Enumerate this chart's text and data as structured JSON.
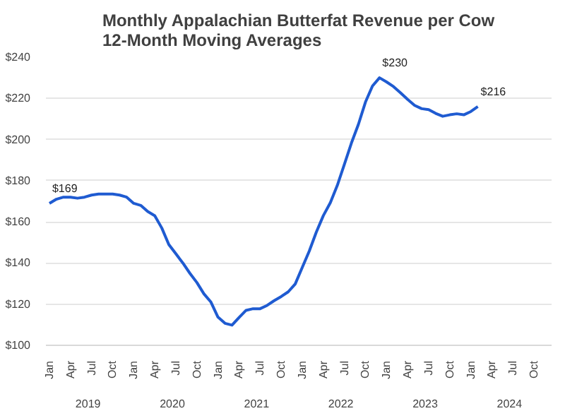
{
  "chart_data": {
    "type": "line",
    "title": "Monthly Appalachian Butterfat Revenue per Cow\n12-Month Moving Averages",
    "categories": [
      "Jan",
      null,
      null,
      "Apr",
      null,
      null,
      "Jul",
      null,
      null,
      "Oct",
      null,
      null,
      "Jan",
      null,
      null,
      "Apr",
      null,
      null,
      "Jul",
      null,
      null,
      "Oct",
      null,
      null,
      "Jan",
      null,
      null,
      "Apr",
      null,
      null,
      "Jul",
      null,
      null,
      "Oct",
      null,
      null,
      "Jan",
      null,
      null,
      "Apr",
      null,
      null,
      "Jul",
      null,
      null,
      "Oct",
      null,
      null,
      "Jan",
      null,
      null,
      "Apr",
      null,
      null,
      "Jul",
      null,
      null,
      "Oct",
      null,
      null,
      "Jan",
      null,
      null,
      "Apr",
      null,
      null,
      "Jul",
      null,
      null,
      "Oct",
      null,
      null
    ],
    "annotations": [
      "2019",
      "2020",
      "2021",
      "2022",
      "2023",
      "2024"
    ],
    "series": [
      {
        "color": "#1f5bd1",
        "values": [
          169,
          171,
          172,
          172,
          171.5,
          172,
          173,
          173.5,
          173.5,
          173.5,
          173,
          172,
          169,
          168,
          165,
          163,
          157,
          149,
          144.5,
          140,
          135,
          130.5,
          125,
          121,
          113.7,
          110.7,
          109.8,
          113.5,
          117,
          117.8,
          117.8,
          119.4,
          121.7,
          123.7,
          126,
          129.8,
          137.8,
          145.8,
          155,
          163,
          169.3,
          177.8,
          188,
          198.3,
          207.4,
          218.2,
          226,
          230,
          228,
          225.7,
          222.7,
          219.5,
          216.6,
          215,
          214.5,
          212.7,
          211.3,
          212,
          212.5,
          212,
          213.6,
          216,
          null,
          null,
          null,
          null,
          null,
          null,
          null,
          null,
          null,
          null
        ],
        "value_labels": [
          "$169",
          null,
          null,
          null,
          null,
          null,
          null,
          null,
          null,
          null,
          null,
          null,
          null,
          null,
          null,
          null,
          null,
          null,
          null,
          null,
          null,
          null,
          null,
          null,
          null,
          null,
          null,
          null,
          null,
          null,
          null,
          null,
          null,
          null,
          null,
          null,
          null,
          null,
          null,
          null,
          null,
          null,
          null,
          null,
          null,
          null,
          null,
          "$230",
          null,
          null,
          null,
          null,
          null,
          null,
          null,
          null,
          null,
          null,
          null,
          null,
          null,
          "$216",
          null,
          null,
          null,
          null,
          null,
          null,
          null,
          null,
          null,
          null
        ]
      }
    ],
    "ylim": [
      100,
      240
    ],
    "yticks": [
      {
        "value": 100,
        "label": "$100"
      },
      {
        "value": 120,
        "label": "$120"
      },
      {
        "value": 140,
        "label": "$140"
      },
      {
        "value": 160,
        "label": "$160"
      },
      {
        "value": 180,
        "label": "$180"
      },
      {
        "value": 200,
        "label": "$200"
      },
      {
        "value": 220,
        "label": "$220"
      },
      {
        "value": 240,
        "label": "$240"
      }
    ],
    "grid": "y",
    "line_style": "solid",
    "marker": "none"
  }
}
